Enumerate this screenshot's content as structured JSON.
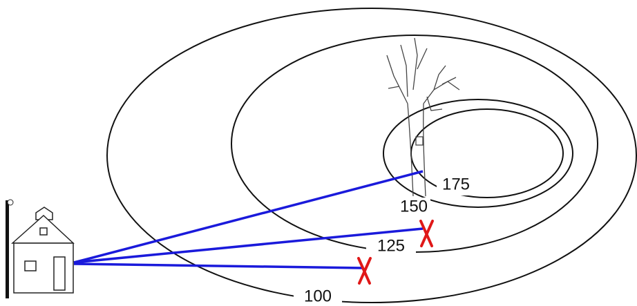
{
  "contours": [
    {
      "label": "100"
    },
    {
      "label": "125"
    },
    {
      "label": "150"
    },
    {
      "label": "175"
    }
  ]
}
